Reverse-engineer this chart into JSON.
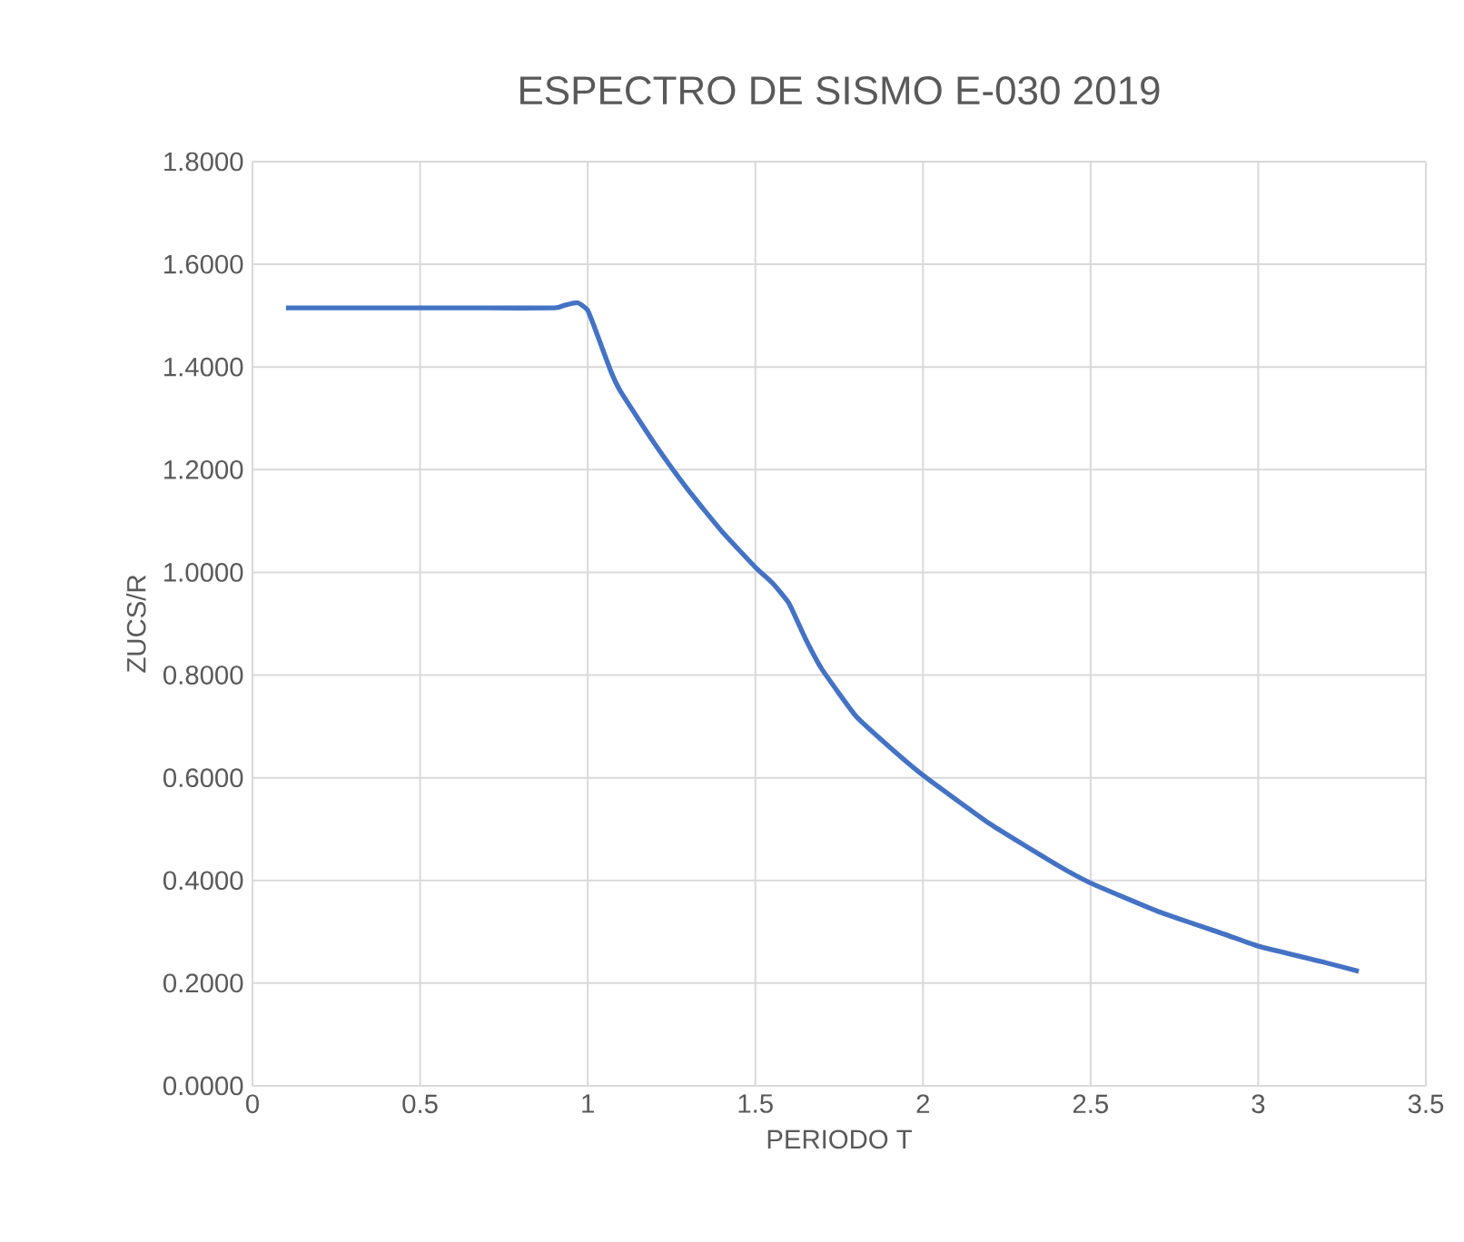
{
  "chart_data": {
    "type": "line",
    "title": "ESPECTRO DE SISMO E-030 2019",
    "xlabel": "PERIODO T",
    "ylabel": "ZUCS/R",
    "x": [
      0.1,
      0.3,
      0.5,
      0.7,
      0.9,
      0.93,
      0.97,
      1.0,
      1.03,
      1.07,
      1.1,
      1.2,
      1.3,
      1.4,
      1.5,
      1.55,
      1.6,
      1.65,
      1.7,
      1.8,
      1.9,
      2.0,
      2.2,
      2.4,
      2.5,
      2.7,
      2.9,
      3.0,
      3.2,
      3.3
    ],
    "series": [
      {
        "color": "#4472c4",
        "values": [
          1.515,
          1.515,
          1.515,
          1.515,
          1.515,
          1.52,
          1.525,
          1.51,
          1.46,
          1.39,
          1.35,
          1.25,
          1.16,
          1.08,
          1.01,
          0.98,
          0.94,
          0.87,
          0.81,
          0.72,
          0.66,
          0.605,
          0.51,
          0.43,
          0.395,
          0.34,
          0.295,
          0.272,
          0.24,
          0.223
        ]
      }
    ],
    "xlim": [
      0,
      3.5
    ],
    "ylim": [
      0,
      1.8
    ],
    "xticks": [
      0,
      0.5,
      1,
      1.5,
      2,
      2.5,
      3,
      3.5
    ],
    "yticks": [
      {
        "value": 0,
        "label": "0.0000"
      },
      {
        "value": 0.2,
        "label": "0.2000"
      },
      {
        "value": 0.4,
        "label": "0.4000"
      },
      {
        "value": 0.6,
        "label": "0.6000"
      },
      {
        "value": 0.8,
        "label": "0.8000"
      },
      {
        "value": 1.0,
        "label": "1.0000"
      },
      {
        "value": 1.2,
        "label": "1.2000"
      },
      {
        "value": 1.4,
        "label": "1.4000"
      },
      {
        "value": 1.6,
        "label": "1.6000"
      },
      {
        "value": 1.8,
        "label": "1.8000"
      }
    ],
    "grid": true,
    "marker": "none",
    "line_style": "solid",
    "legend": false
  }
}
